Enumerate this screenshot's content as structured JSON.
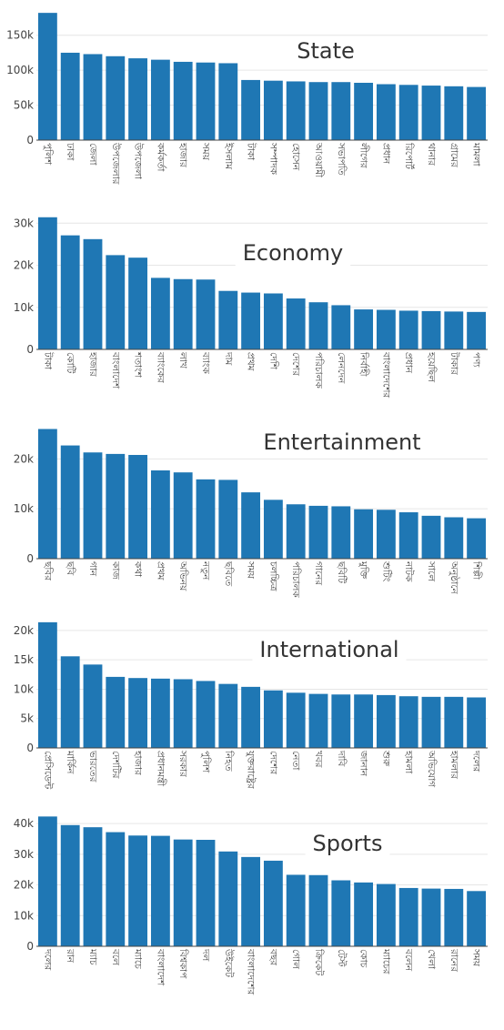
{
  "colors": {
    "bar": "#1f77b4",
    "grid": "#e6e6e6",
    "axis": "#444444",
    "title": "#333333",
    "background": "#ffffff"
  },
  "chart_data": [
    {
      "type": "bar",
      "title": "State",
      "ylim": [
        0,
        190000
      ],
      "yticks": [
        0,
        50000,
        100000,
        150000
      ],
      "ytick_labels": [
        "0",
        "50k",
        "100k",
        "150k"
      ],
      "grid": true,
      "categories": [
        "পুলিশ",
        "ঢাকা",
        "জেলা",
        "উপজেলার",
        "উপজেলা",
        "কর্মকর্তা",
        "হাজার",
        "সময়",
        "ইসলাম",
        "টাকা",
        "সম্পাদক",
        "হোসেন",
        "আওয়ামী",
        "সভাপতি",
        "লীগের",
        "প্রধান",
        "রিপোর্ট",
        "থানার",
        "গ্রামের",
        "মামলা"
      ],
      "values": [
        182000,
        125000,
        123000,
        120000,
        117000,
        115000,
        112000,
        111000,
        110000,
        86000,
        85000,
        84000,
        83000,
        83000,
        82000,
        80000,
        79000,
        78000,
        77000,
        76000
      ]
    },
    {
      "type": "bar",
      "title": "Economy",
      "ylim": [
        0,
        32000
      ],
      "yticks": [
        0,
        10000,
        20000,
        30000
      ],
      "ytick_labels": [
        "0",
        "10k",
        "20k",
        "30k"
      ],
      "grid": true,
      "categories": [
        "টাকা",
        "কোটি",
        "হাজার",
        "বাংলাদেশ",
        "শতাংশ",
        "ব্যাংকের",
        "লাখ",
        "ব্যাংক",
        "দাম",
        "প্রথম",
        "দেশি",
        "দেশের",
        "পরিচালক",
        "লেনদেন",
        "নির্বাহী",
        "বাংলাদেশের",
        "প্রধান",
        "হয়েছিল",
        "টাকার",
        "পণ্য"
      ],
      "values": [
        31400,
        27100,
        26200,
        22400,
        21800,
        17000,
        16700,
        16600,
        13900,
        13500,
        13300,
        12100,
        11200,
        10500,
        9500,
        9400,
        9200,
        9100,
        9000,
        8900
      ]
    },
    {
      "type": "bar",
      "title": "Entertainment",
      "ylim": [
        0,
        27000
      ],
      "yticks": [
        0,
        10000,
        20000
      ],
      "ytick_labels": [
        "0",
        "10k",
        "20k"
      ],
      "grid": true,
      "categories": [
        "ছবির",
        "ছবি",
        "গান",
        "কাজ",
        "কথা",
        "প্রথম",
        "অভিনয়",
        "নতুন",
        "ছবিতে",
        "সময়",
        "চলচ্চিত্র",
        "পরিচালক",
        "গানের",
        "ছবিটি",
        "মুক্তি",
        "শুটিং",
        "নাটক",
        "সালে",
        "অনুষ্ঠানে",
        "শিল্পী"
      ],
      "values": [
        26000,
        22700,
        21300,
        21000,
        20800,
        17700,
        17300,
        15900,
        15800,
        13300,
        11800,
        10900,
        10600,
        10500,
        9900,
        9800,
        9300,
        8600,
        8300,
        8100
      ]
    },
    {
      "type": "bar",
      "title": "International",
      "ylim": [
        0,
        22000
      ],
      "yticks": [
        0,
        5000,
        10000,
        15000,
        20000
      ],
      "ytick_labels": [
        "0",
        "5k",
        "10k",
        "15k",
        "20k"
      ],
      "grid": true,
      "categories": [
        "প্রেসিডেন্ট",
        "মার্কিন",
        "ভারতের",
        "দেশটির",
        "হাজার",
        "প্রধানমন্ত্রী",
        "সরকার",
        "পুলিশ",
        "নিহত",
        "যুক্তরাষ্ট্রের",
        "দেশের",
        "নেতা",
        "খবর",
        "দাবি",
        "জানান",
        "শুরু",
        "হামলা",
        "অভিযোগ",
        "হামলার",
        "দলের"
      ],
      "values": [
        21400,
        15600,
        14200,
        12100,
        11900,
        11800,
        11700,
        11400,
        10900,
        10400,
        9800,
        9400,
        9200,
        9100,
        9100,
        9000,
        8800,
        8700,
        8700,
        8600
      ]
    },
    {
      "type": "bar",
      "title": "Sports",
      "ylim": [
        0,
        43000
      ],
      "yticks": [
        0,
        10000,
        20000,
        30000,
        40000
      ],
      "ytick_labels": [
        "0",
        "10k",
        "20k",
        "30k",
        "40k"
      ],
      "grid": true,
      "categories": [
        "দলের",
        "রান",
        "ম্যাচ",
        "বলে",
        "ম্যাচে",
        "বাংলাদেশ",
        "বিশ্বকাপ",
        "দল",
        "উইকেট",
        "বাংলাদেশের",
        "বছর",
        "গোল",
        "ক্রিকেট",
        "টেস্ট",
        "কোচ",
        "ম্যাচের",
        "বলেন",
        "খেলা",
        "রানের",
        "সময়"
      ],
      "values": [
        42300,
        39500,
        38800,
        37200,
        36100,
        36000,
        34800,
        34700,
        30900,
        29100,
        27900,
        23300,
        23200,
        21500,
        20800,
        20300,
        19000,
        18800,
        18700,
        18000
      ]
    }
  ]
}
